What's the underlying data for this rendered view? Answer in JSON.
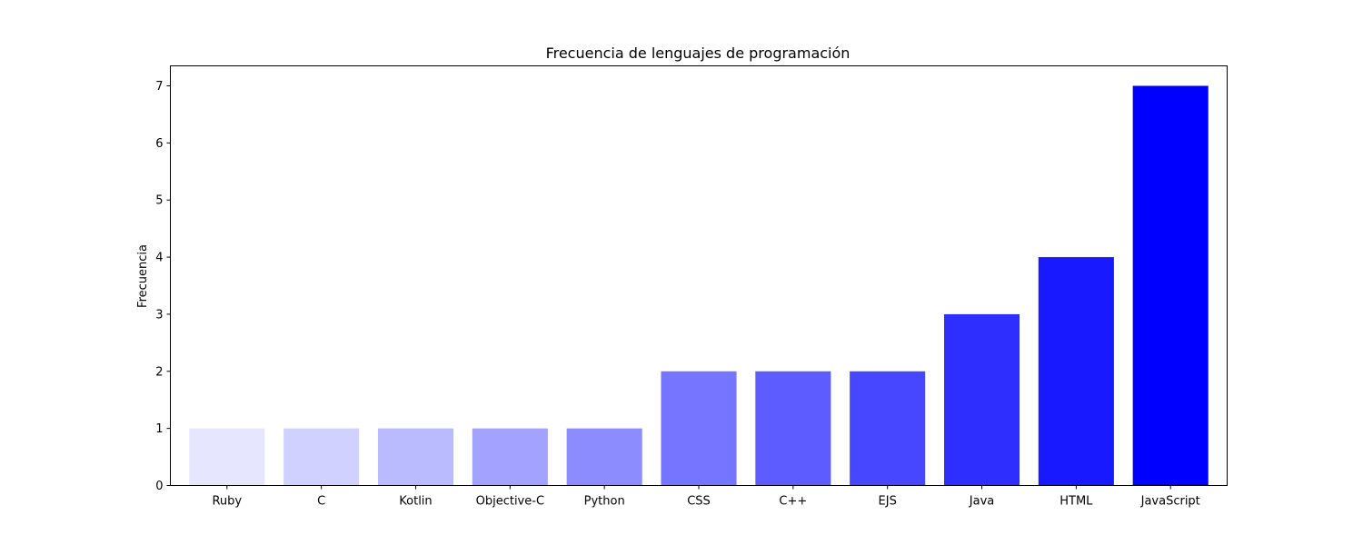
{
  "chart_data": {
    "type": "bar",
    "title": "Frecuencia de lenguajes de programación",
    "xlabel": "",
    "ylabel": "Frecuencia",
    "categories": [
      "Ruby",
      "C",
      "Kotlin",
      "Objective-C",
      "Python",
      "CSS",
      "C++",
      "EJS",
      "Java",
      "HTML",
      "JavaScript"
    ],
    "values": [
      1,
      1,
      1,
      1,
      1,
      2,
      2,
      2,
      3,
      4,
      7
    ],
    "colors": [
      "#e6e6ff",
      "#d1d1ff",
      "#babaff",
      "#a3a3ff",
      "#8c8cff",
      "#7575ff",
      "#5c5cff",
      "#4747ff",
      "#2e2eff",
      "#1919ff",
      "#0000ff"
    ],
    "yticks": [
      0,
      1,
      2,
      3,
      4,
      5,
      6,
      7
    ],
    "ylim": [
      0,
      7.35
    ],
    "grid": false,
    "legend": "none"
  }
}
